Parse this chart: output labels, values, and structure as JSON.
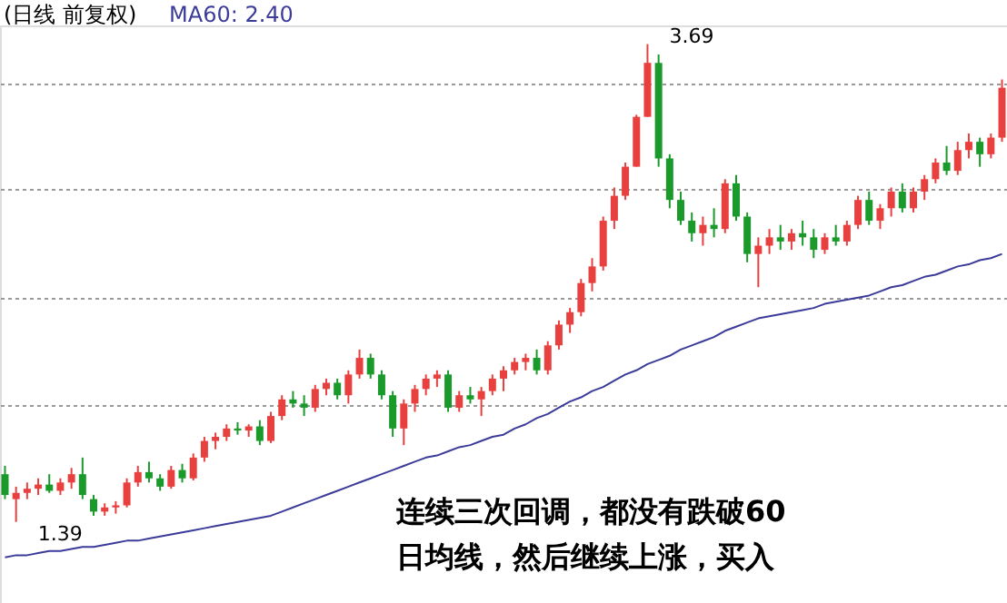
{
  "chart_data": {
    "type": "candlestick",
    "title": "(日线 前复权)",
    "categories": [
      null,
      null,
      null,
      null,
      null,
      null,
      null,
      null,
      null,
      null,
      null,
      null,
      null,
      null,
      null,
      null,
      null,
      null,
      null,
      null,
      null,
      null,
      null,
      null,
      null,
      null,
      null,
      null,
      null,
      null,
      null,
      null,
      null,
      null,
      null,
      null,
      null,
      null,
      null,
      null,
      null,
      null,
      null,
      null,
      null,
      null,
      null,
      null,
      null,
      null,
      null,
      null,
      null,
      null,
      null,
      null,
      null,
      null,
      null,
      null,
      null,
      null,
      null,
      null,
      null,
      null,
      null,
      null,
      null,
      null,
      null,
      null,
      null,
      null,
      null,
      null,
      null,
      null,
      null,
      null,
      null,
      null,
      null,
      null,
      null,
      null,
      null,
      null,
      null,
      null,
      null
    ],
    "ohlc": [
      [
        1.62,
        1.66,
        1.5,
        1.52
      ],
      [
        1.5,
        1.56,
        1.39,
        1.53
      ],
      [
        1.53,
        1.58,
        1.5,
        1.55
      ],
      [
        1.55,
        1.6,
        1.52,
        1.57
      ],
      [
        1.57,
        1.62,
        1.53,
        1.54
      ],
      [
        1.54,
        1.6,
        1.52,
        1.58
      ],
      [
        1.58,
        1.65,
        1.55,
        1.62
      ],
      [
        1.62,
        1.7,
        1.5,
        1.52
      ],
      [
        1.5,
        1.52,
        1.42,
        1.44
      ],
      [
        1.44,
        1.48,
        1.42,
        1.46
      ],
      [
        1.46,
        1.49,
        1.43,
        1.47
      ],
      [
        1.47,
        1.6,
        1.46,
        1.58
      ],
      [
        1.58,
        1.66,
        1.56,
        1.63
      ],
      [
        1.63,
        1.68,
        1.58,
        1.6
      ],
      [
        1.6,
        1.62,
        1.54,
        1.56
      ],
      [
        1.56,
        1.66,
        1.55,
        1.64
      ],
      [
        1.64,
        1.67,
        1.58,
        1.6
      ],
      [
        1.6,
        1.72,
        1.59,
        1.7
      ],
      [
        1.7,
        1.8,
        1.68,
        1.78
      ],
      [
        1.78,
        1.82,
        1.74,
        1.8
      ],
      [
        1.8,
        1.86,
        1.78,
        1.84
      ],
      [
        1.84,
        1.87,
        1.81,
        1.83
      ],
      [
        1.83,
        1.86,
        1.8,
        1.85
      ],
      [
        1.85,
        1.88,
        1.76,
        1.78
      ],
      [
        1.78,
        1.92,
        1.77,
        1.9
      ],
      [
        1.9,
        2.0,
        1.88,
        1.98
      ],
      [
        1.98,
        2.02,
        1.94,
        1.96
      ],
      [
        1.96,
        2.0,
        1.9,
        1.94
      ],
      [
        1.94,
        2.05,
        1.92,
        2.03
      ],
      [
        2.03,
        2.08,
        2.0,
        2.06
      ],
      [
        2.06,
        2.08,
        1.98,
        2.0
      ],
      [
        2.0,
        2.12,
        1.96,
        2.1
      ],
      [
        2.1,
        2.22,
        2.08,
        2.18
      ],
      [
        2.18,
        2.2,
        2.08,
        2.1
      ],
      [
        2.1,
        2.12,
        1.98,
        2.0
      ],
      [
        2.0,
        2.02,
        1.8,
        1.84
      ],
      [
        1.84,
        1.98,
        1.76,
        1.96
      ],
      [
        1.96,
        2.05,
        1.92,
        2.03
      ],
      [
        2.03,
        2.1,
        2.0,
        2.08
      ],
      [
        2.08,
        2.12,
        2.04,
        2.1
      ],
      [
        2.1,
        2.12,
        1.92,
        1.94
      ],
      [
        1.94,
        2.02,
        1.92,
        2.0
      ],
      [
        2.0,
        2.04,
        1.96,
        1.98
      ],
      [
        1.98,
        2.04,
        1.9,
        2.02
      ],
      [
        2.02,
        2.1,
        2.0,
        2.08
      ],
      [
        2.08,
        2.14,
        2.02,
        2.12
      ],
      [
        2.12,
        2.18,
        2.1,
        2.16
      ],
      [
        2.16,
        2.2,
        2.12,
        2.18
      ],
      [
        2.18,
        2.22,
        2.1,
        2.12
      ],
      [
        2.12,
        2.26,
        2.1,
        2.24
      ],
      [
        2.24,
        2.36,
        2.22,
        2.34
      ],
      [
        2.34,
        2.42,
        2.3,
        2.4
      ],
      [
        2.4,
        2.56,
        2.38,
        2.54
      ],
      [
        2.54,
        2.66,
        2.5,
        2.62
      ],
      [
        2.62,
        2.86,
        2.6,
        2.84
      ],
      [
        2.84,
        3.0,
        2.8,
        2.96
      ],
      [
        2.96,
        3.12,
        2.94,
        3.1
      ],
      [
        3.1,
        3.35,
        3.1,
        3.34
      ],
      [
        3.34,
        3.69,
        3.34,
        3.6
      ],
      [
        3.6,
        3.64,
        3.1,
        3.14
      ],
      [
        3.14,
        3.16,
        2.9,
        2.94
      ],
      [
        2.94,
        2.98,
        2.82,
        2.84
      ],
      [
        2.84,
        2.88,
        2.74,
        2.78
      ],
      [
        2.78,
        2.86,
        2.72,
        2.82
      ],
      [
        2.82,
        2.9,
        2.76,
        2.8
      ],
      [
        2.8,
        3.04,
        2.78,
        3.02
      ],
      [
        3.02,
        3.06,
        2.84,
        2.86
      ],
      [
        2.86,
        2.88,
        2.64,
        2.68
      ],
      [
        2.68,
        2.76,
        2.52,
        2.72
      ],
      [
        2.72,
        2.8,
        2.68,
        2.76
      ],
      [
        2.76,
        2.82,
        2.7,
        2.74
      ],
      [
        2.74,
        2.8,
        2.7,
        2.78
      ],
      [
        2.78,
        2.84,
        2.72,
        2.76
      ],
      [
        2.76,
        2.8,
        2.66,
        2.7
      ],
      [
        2.7,
        2.78,
        2.68,
        2.76
      ],
      [
        2.76,
        2.82,
        2.72,
        2.74
      ],
      [
        2.74,
        2.84,
        2.72,
        2.82
      ],
      [
        2.82,
        2.96,
        2.8,
        2.94
      ],
      [
        2.94,
        2.98,
        2.82,
        2.84
      ],
      [
        2.84,
        2.92,
        2.8,
        2.9
      ],
      [
        2.9,
        3.0,
        2.86,
        2.98
      ],
      [
        2.98,
        3.02,
        2.88,
        2.9
      ],
      [
        2.9,
        3.0,
        2.88,
        2.98
      ],
      [
        2.98,
        3.06,
        2.94,
        3.04
      ],
      [
        3.04,
        3.14,
        3.02,
        3.12
      ],
      [
        3.12,
        3.2,
        3.06,
        3.08
      ],
      [
        3.08,
        3.22,
        3.06,
        3.18
      ],
      [
        3.18,
        3.26,
        3.14,
        3.22
      ],
      [
        3.22,
        3.24,
        3.1,
        3.16
      ],
      [
        3.16,
        3.26,
        3.14,
        3.24
      ],
      [
        3.24,
        3.52,
        3.22,
        3.48
      ]
    ],
    "series": [
      {
        "name": "MA60: 2.40",
        "type": "line",
        "color": "#3b3b9a",
        "values": [
          1.22,
          1.23,
          1.23,
          1.24,
          1.25,
          1.25,
          1.26,
          1.27,
          1.27,
          1.28,
          1.29,
          1.3,
          1.3,
          1.31,
          1.32,
          1.33,
          1.34,
          1.35,
          1.36,
          1.37,
          1.38,
          1.39,
          1.4,
          1.41,
          1.42,
          1.44,
          1.46,
          1.48,
          1.5,
          1.52,
          1.54,
          1.56,
          1.58,
          1.6,
          1.62,
          1.64,
          1.66,
          1.68,
          1.7,
          1.71,
          1.73,
          1.75,
          1.76,
          1.78,
          1.8,
          1.81,
          1.84,
          1.86,
          1.89,
          1.91,
          1.94,
          1.97,
          1.99,
          2.02,
          2.04,
          2.07,
          2.1,
          2.12,
          2.15,
          2.17,
          2.19,
          2.22,
          2.24,
          2.26,
          2.28,
          2.31,
          2.33,
          2.35,
          2.37,
          2.38,
          2.39,
          2.4,
          2.41,
          2.42,
          2.44,
          2.45,
          2.46,
          2.47,
          2.48,
          2.5,
          2.52,
          2.53,
          2.55,
          2.57,
          2.58,
          2.6,
          2.62,
          2.63,
          2.65,
          2.66,
          2.68
        ]
      }
    ],
    "ylim": [
      1.0,
      3.78
    ],
    "yticks": [
      {
        "value": 1.95,
        "label": null
      },
      {
        "value": 2.47,
        "label": null
      },
      {
        "value": 2.99,
        "label": null
      },
      {
        "value": 3.5,
        "label": null
      }
    ],
    "grid": "y",
    "annotations": [
      "3.69",
      "1.39",
      "连续三次回调，都没有跌破60日均线，然后继续上涨，买入"
    ]
  }
}
